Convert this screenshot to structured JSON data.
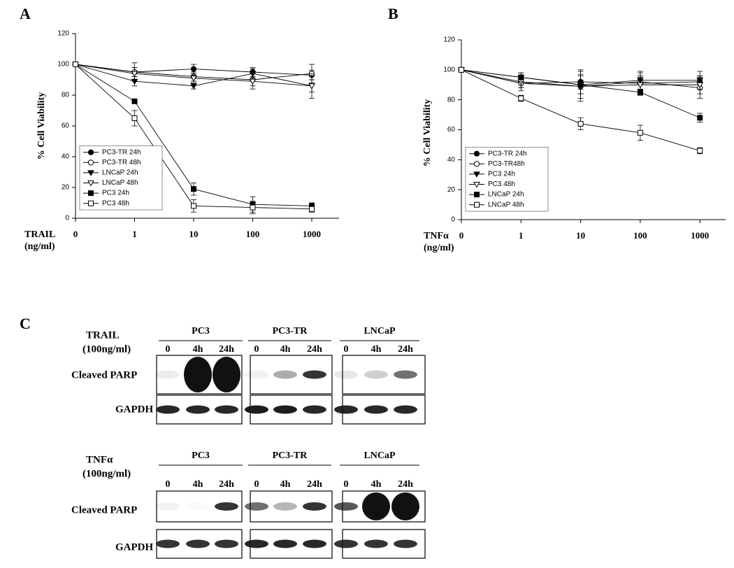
{
  "chart_data": [
    {
      "type": "line",
      "panel_label": "A",
      "x_label": [
        "TRAIL",
        "(ng/ml)"
      ],
      "y_label": "% Cell Viability",
      "categories": [
        "0",
        "1",
        "10",
        "100",
        "1000"
      ],
      "ylim": [
        0,
        120
      ],
      "yticks": [
        0,
        20,
        40,
        60,
        80,
        100,
        120
      ],
      "legend_loc": "lower left",
      "series": [
        {
          "name": "PC3-TR 24h",
          "color": "#000000",
          "marker": "circle",
          "filled": true,
          "values": [
            100,
            95,
            97,
            95,
            93
          ],
          "errors": [
            0,
            3,
            3,
            3,
            3
          ]
        },
        {
          "name": "PC3-TR 48h",
          "color": "#000000",
          "marker": "circle",
          "filled": false,
          "values": [
            100,
            95,
            92,
            90,
            94
          ],
          "errors": [
            0,
            6,
            3,
            4,
            6
          ]
        },
        {
          "name": "LNCaP 24h",
          "color": "#000000",
          "marker": "triangle-down",
          "filled": true,
          "values": [
            100,
            89,
            86,
            94,
            86
          ],
          "errors": [
            0,
            3,
            2,
            3,
            4
          ]
        },
        {
          "name": "LNCaP 48h",
          "color": "#000000",
          "marker": "triangle-down",
          "filled": false,
          "values": [
            100,
            94,
            91,
            89,
            86
          ],
          "errors": [
            0,
            4,
            2,
            5,
            8
          ]
        },
        {
          "name": "PC3 24h",
          "color": "#000000",
          "marker": "square",
          "filled": true,
          "values": [
            100,
            76,
            19,
            9,
            8
          ],
          "errors": [
            0,
            1,
            4,
            5,
            2
          ]
        },
        {
          "name": "PC3 48h",
          "color": "#000000",
          "marker": "square",
          "filled": false,
          "values": [
            100,
            65,
            8,
            7,
            6
          ],
          "errors": [
            0,
            5,
            4,
            4,
            2
          ]
        }
      ]
    },
    {
      "type": "line",
      "panel_label": "B",
      "x_label": [
        "TNFα",
        "(ng/ml)"
      ],
      "y_label": "% Cell Viability",
      "categories": [
        "0",
        "1",
        "10",
        "100",
        "1000"
      ],
      "ylim": [
        0,
        120
      ],
      "yticks": [
        0,
        20,
        40,
        60,
        80,
        100,
        120
      ],
      "legend_loc": "lower left",
      "series": [
        {
          "name": "PC3-TR 24h",
          "color": "#000000",
          "marker": "circle",
          "filled": true,
          "values": [
            100,
            91,
            92,
            91,
            92
          ],
          "errors": [
            0,
            3,
            8,
            5,
            4
          ]
        },
        {
          "name": "PC3-TR48h",
          "color": "#000000",
          "marker": "circle",
          "filled": false,
          "values": [
            100,
            91,
            89,
            92,
            88
          ],
          "errors": [
            0,
            5,
            10,
            6,
            7
          ]
        },
        {
          "name": "PC3 24h",
          "color": "#000000",
          "marker": "triangle-down",
          "filled": true,
          "values": [
            100,
            95,
            90,
            93,
            93
          ],
          "errors": [
            0,
            3,
            3,
            6,
            6
          ]
        },
        {
          "name": "PC3 48h",
          "color": "#000000",
          "marker": "triangle-down",
          "filled": false,
          "values": [
            100,
            92,
            89,
            90,
            90
          ],
          "errors": [
            0,
            4,
            8,
            5,
            6
          ]
        },
        {
          "name": "LNCaP 24h",
          "color": "#000000",
          "marker": "square",
          "filled": true,
          "values": [
            100,
            95,
            90,
            85,
            68
          ],
          "errors": [
            0,
            3,
            6,
            2,
            3
          ]
        },
        {
          "name": "LNCaP 48h",
          "color": "#000000",
          "marker": "square",
          "filled": false,
          "values": [
            100,
            81,
            64,
            58,
            46
          ],
          "errors": [
            0,
            2,
            4,
            5,
            2
          ]
        }
      ]
    }
  ],
  "blots": {
    "panel_label": "C",
    "groups": [
      {
        "treatment": [
          "TRAIL",
          "(100ng/ml)"
        ],
        "cell_lines": [
          "PC3",
          "PC3-TR",
          "LNCaP"
        ],
        "lanes": [
          "0",
          "4h",
          "24h"
        ],
        "rows": [
          "Cleaved PARP",
          "GAPDH"
        ]
      },
      {
        "treatment": [
          "TNFα",
          "(100ng/ml)"
        ],
        "cell_lines": [
          "PC3",
          "PC3-TR",
          "LNCaP"
        ],
        "lanes": [
          "0",
          "4h",
          "24h"
        ],
        "rows": [
          "Cleaved PARP",
          "GAPDH"
        ]
      }
    ]
  }
}
